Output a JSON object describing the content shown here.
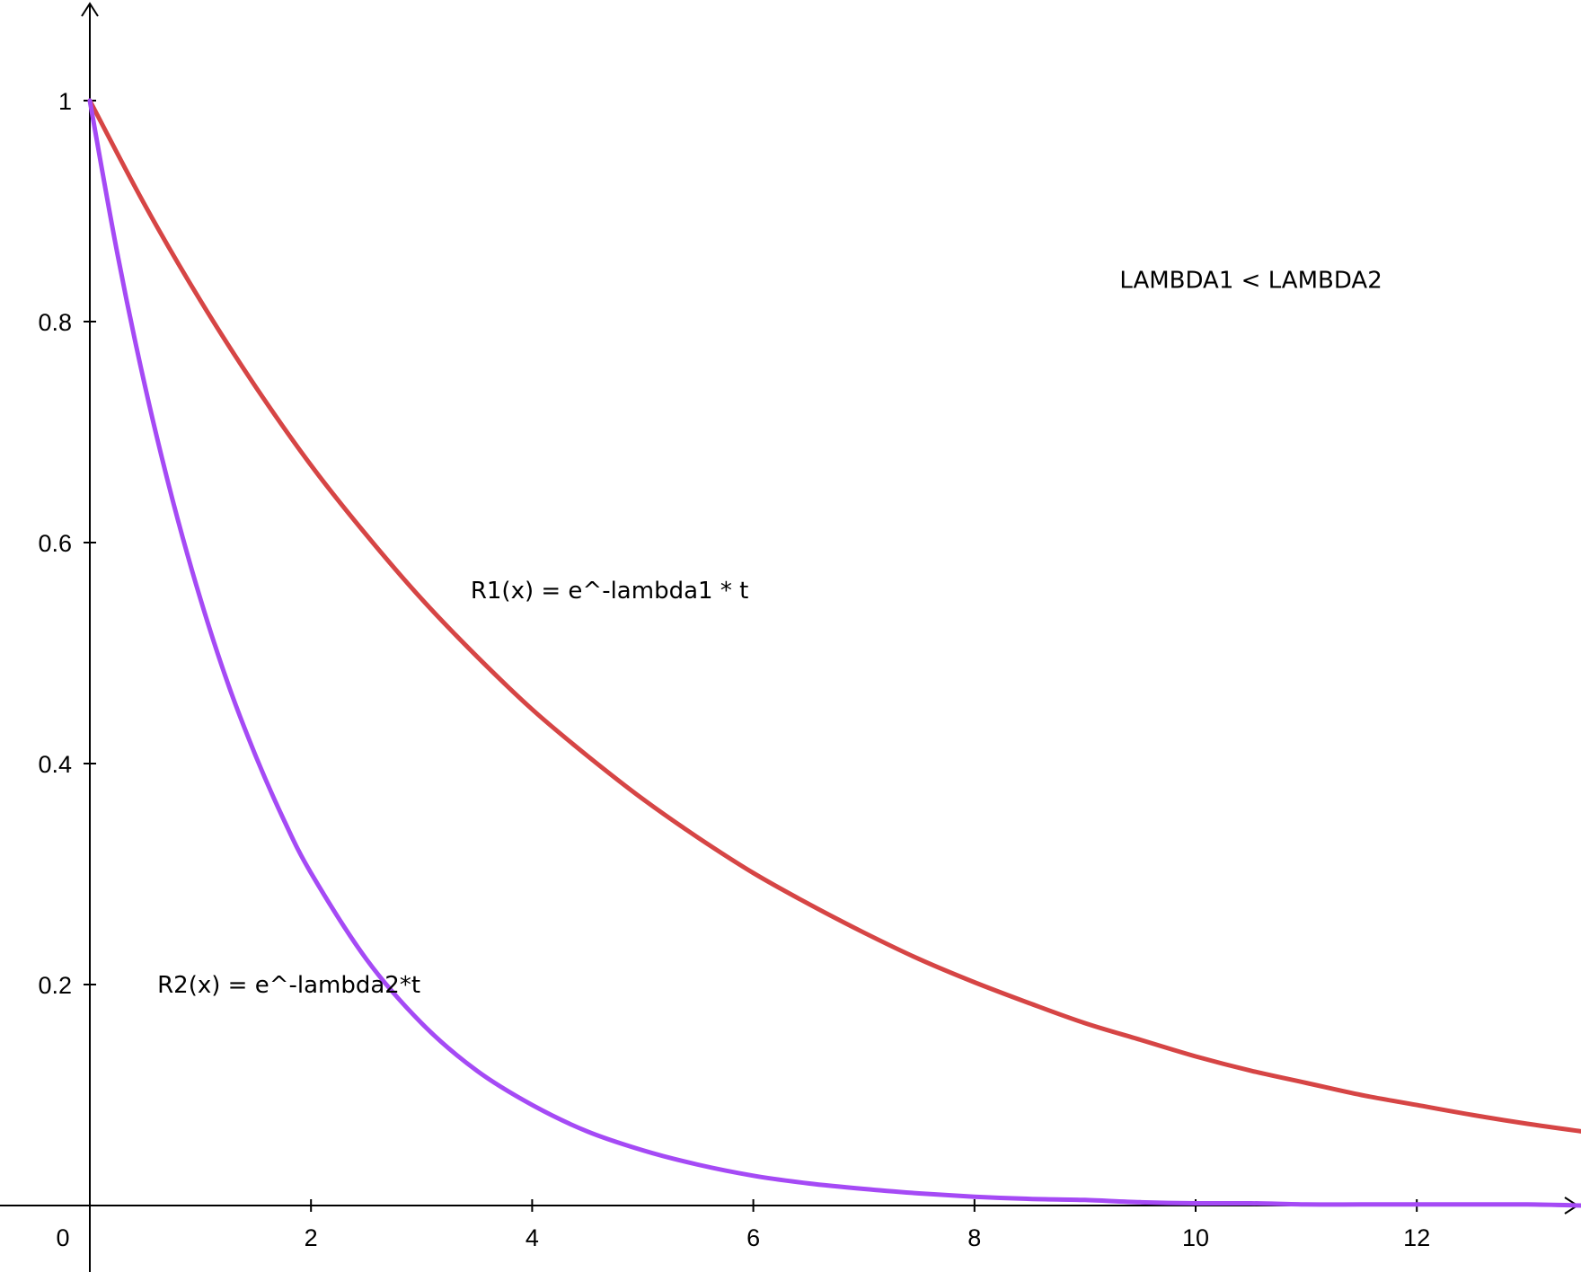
{
  "chart_data": {
    "type": "line",
    "title": "",
    "xlabel": "",
    "ylabel": "",
    "xlim": [
      0,
      13.5
    ],
    "ylim": [
      0,
      1.1
    ],
    "grid": false,
    "x_ticks": [
      0,
      2,
      4,
      6,
      8,
      10,
      12
    ],
    "x_tick_labels": [
      "0",
      "2",
      "4",
      "6",
      "8",
      "10",
      "12"
    ],
    "y_ticks": [
      0.2,
      0.4,
      0.6,
      0.8,
      1
    ],
    "y_tick_labels": [
      "0.2",
      "0.4",
      "0.6",
      "0.8",
      "1"
    ],
    "series": [
      {
        "color": "#d64545",
        "x": [
          0,
          0.5,
          1,
          1.5,
          2,
          2.5,
          3,
          3.5,
          4,
          4.5,
          5,
          5.5,
          6,
          6.5,
          7,
          7.5,
          8,
          8.5,
          9,
          9.5,
          10,
          10.5,
          11,
          11.5,
          12,
          12.5,
          13,
          13.5
        ],
        "values": [
          1,
          0.905,
          0.819,
          0.741,
          0.67,
          0.607,
          0.549,
          0.497,
          0.449,
          0.407,
          0.368,
          0.333,
          0.301,
          0.273,
          0.247,
          0.223,
          0.202,
          0.183,
          0.165,
          0.15,
          0.135,
          0.122,
          0.111,
          0.1,
          0.091,
          0.082,
          0.074,
          0.067
        ]
      },
      {
        "color": "#a54af5",
        "x": [
          0,
          0.25,
          0.5,
          0.75,
          1,
          1.25,
          1.5,
          1.75,
          2,
          2.5,
          3,
          3.5,
          4,
          4.5,
          5,
          5.5,
          6,
          6.5,
          7,
          7.5,
          8,
          8.5,
          9,
          9.5,
          10,
          10.5,
          11,
          11.5,
          12,
          12.5,
          13,
          13.5
        ],
        "values": [
          1,
          0.861,
          0.741,
          0.638,
          0.549,
          0.472,
          0.407,
          0.35,
          0.301,
          0.223,
          0.165,
          0.122,
          0.091,
          0.067,
          0.05,
          0.037,
          0.027,
          0.02,
          0.015,
          0.011,
          0.008,
          0.006,
          0.005,
          0.003,
          0.002,
          0.002,
          0.001,
          0.001,
          0.001,
          0.001,
          0.001,
          0.0
        ]
      }
    ],
    "annotations": [
      {
        "text": "LAMBDA1 < LAMBDA2",
        "x": 10.5,
        "y": 0.838
      },
      {
        "text": "R1(x) = e^-lambda1 * t",
        "x": 4.7,
        "y": 0.557
      },
      {
        "text": "R2(x) = e^-lambda2*t",
        "x": 1.8,
        "y": 0.2
      }
    ]
  }
}
